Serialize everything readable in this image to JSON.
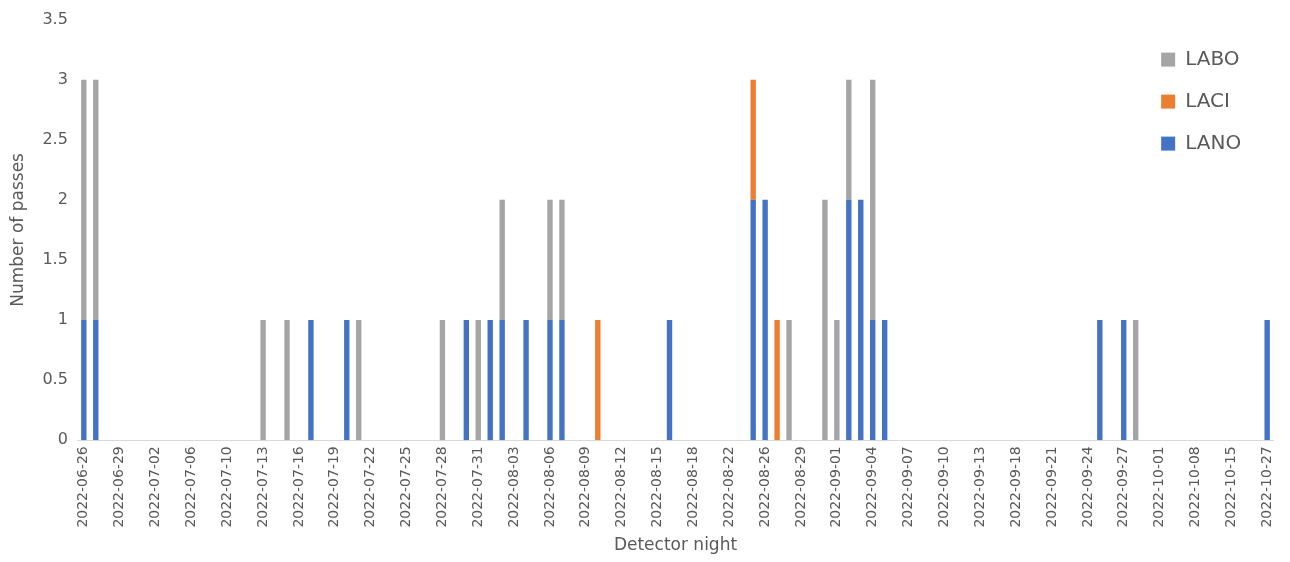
{
  "chart_data": {
    "type": "bar",
    "stacked": true,
    "xlabel": "Detector night",
    "ylabel": "Number of passes",
    "categories": [
      "2022-06-26",
      null,
      null,
      "2022-06-29",
      null,
      null,
      "2022-07-02",
      null,
      null,
      "2022-07-06",
      null,
      null,
      "2022-07-10",
      null,
      null,
      "2022-07-13",
      null,
      null,
      "2022-07-16",
      null,
      null,
      "2022-07-19",
      null,
      null,
      "2022-07-22",
      null,
      null,
      "2022-07-25",
      null,
      null,
      "2022-07-28",
      null,
      null,
      "2022-07-31",
      null,
      null,
      "2022-08-03",
      null,
      null,
      "2022-08-06",
      null,
      null,
      "2022-08-09",
      null,
      null,
      "2022-08-12",
      null,
      null,
      "2022-08-15",
      null,
      null,
      "2022-08-18",
      null,
      null,
      "2022-08-22",
      null,
      null,
      "2022-08-26",
      null,
      null,
      "2022-08-29",
      null,
      null,
      "2022-09-01",
      null,
      null,
      "2022-09-04",
      null,
      null,
      "2022-09-07",
      null,
      null,
      "2022-09-10",
      null,
      null,
      "2022-09-13",
      null,
      null,
      "2022-09-18",
      null,
      null,
      "2022-09-21",
      null,
      null,
      "2022-09-24",
      null,
      null,
      "2022-09-27",
      null,
      null,
      "2022-10-01",
      null,
      null,
      "2022-10-08",
      null,
      null,
      "2022-10-15",
      null,
      null,
      "2022-10-27"
    ],
    "series": [
      {
        "name": "LANO",
        "color": "#4472c4",
        "values": [
          1,
          1,
          null,
          null,
          null,
          null,
          null,
          null,
          null,
          null,
          null,
          null,
          null,
          null,
          null,
          null,
          null,
          null,
          null,
          1,
          null,
          null,
          1,
          null,
          null,
          null,
          null,
          null,
          null,
          null,
          null,
          null,
          1,
          null,
          1,
          1,
          null,
          1,
          null,
          1,
          1,
          null,
          null,
          null,
          null,
          null,
          null,
          null,
          null,
          1,
          null,
          null,
          null,
          null,
          null,
          null,
          2,
          2,
          null,
          null,
          null,
          null,
          null,
          null,
          2,
          2,
          1,
          1,
          null,
          null,
          null,
          null,
          null,
          null,
          null,
          null,
          null,
          null,
          null,
          null,
          null,
          null,
          null,
          null,
          null,
          1,
          null,
          1,
          null,
          null,
          null,
          null,
          null,
          null,
          null,
          null,
          null,
          null,
          null,
          1
        ]
      },
      {
        "name": "LACI",
        "color": "#ed7d31",
        "values": [
          null,
          null,
          null,
          null,
          null,
          null,
          null,
          null,
          null,
          null,
          null,
          null,
          null,
          null,
          null,
          null,
          null,
          null,
          null,
          null,
          null,
          null,
          null,
          null,
          null,
          null,
          null,
          null,
          null,
          null,
          null,
          null,
          null,
          null,
          null,
          null,
          null,
          null,
          null,
          null,
          null,
          null,
          null,
          1,
          null,
          null,
          null,
          null,
          null,
          null,
          null,
          null,
          null,
          null,
          null,
          null,
          1,
          null,
          1,
          null,
          null,
          null,
          null,
          null,
          null,
          null,
          null,
          null,
          null,
          null,
          null,
          null,
          null,
          null,
          null,
          null,
          null,
          null,
          null,
          null,
          null,
          null,
          null,
          null,
          null,
          null,
          null,
          null,
          null,
          null,
          null,
          null,
          null,
          null,
          null,
          null,
          null,
          null,
          null,
          null
        ]
      },
      {
        "name": "LABO",
        "color": "#a5a5a5",
        "values": [
          2,
          2,
          null,
          null,
          null,
          null,
          null,
          null,
          null,
          null,
          null,
          null,
          null,
          null,
          null,
          1,
          null,
          1,
          null,
          null,
          null,
          null,
          null,
          1,
          null,
          null,
          null,
          null,
          null,
          null,
          1,
          null,
          null,
          1,
          null,
          1,
          null,
          null,
          null,
          1,
          1,
          null,
          null,
          null,
          null,
          null,
          null,
          null,
          null,
          null,
          null,
          null,
          null,
          null,
          null,
          null,
          null,
          null,
          null,
          1,
          null,
          null,
          2,
          1,
          1,
          null,
          2,
          null,
          null,
          null,
          null,
          null,
          null,
          null,
          null,
          null,
          null,
          null,
          null,
          null,
          null,
          null,
          null,
          null,
          null,
          null,
          null,
          null,
          1,
          null,
          null,
          null,
          null,
          null,
          null,
          null,
          null,
          null,
          null,
          null
        ]
      }
    ],
    "ylim": [
      0,
      3.5
    ],
    "yticks": [
      0,
      0.5,
      1,
      1.5,
      2,
      2.5,
      3,
      3.5
    ],
    "legend": "top right"
  }
}
